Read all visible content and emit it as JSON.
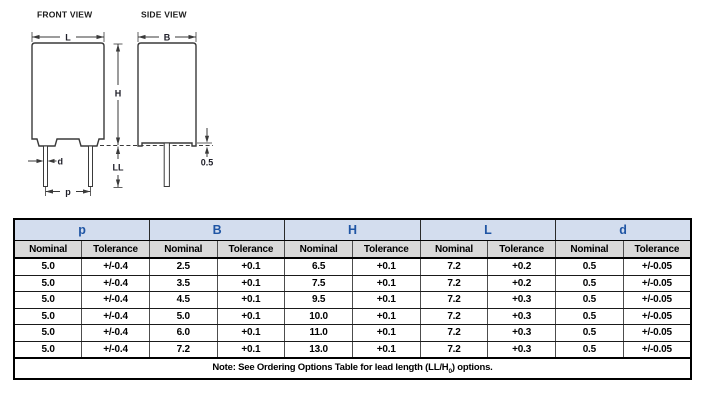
{
  "colors": {
    "header_blue": "#1f55a4",
    "group_header_bg": "#d3ddee",
    "subheader_bg": "#d9d9d9",
    "drawing_line": "#3a3a3a"
  },
  "diagram": {
    "front_view_title": "FRONT VIEW",
    "side_view_title": "SIDE VIEW",
    "labels": {
      "L": "L",
      "B": "B",
      "H": "H",
      "LL": "LL",
      "d": "d",
      "p": "p",
      "standoff": "0.5"
    }
  },
  "table": {
    "groups": [
      "p",
      "B",
      "H",
      "L",
      "d"
    ],
    "subheader_nominal": "Nominal",
    "subheader_tolerance": "Tolerance",
    "rows": [
      [
        "5.0",
        "+/-0.4",
        "2.5",
        "+0.1",
        "6.5",
        "+0.1",
        "7.2",
        "+0.2",
        "0.5",
        "+/-0.05"
      ],
      [
        "5.0",
        "+/-0.4",
        "3.5",
        "+0.1",
        "7.5",
        "+0.1",
        "7.2",
        "+0.2",
        "0.5",
        "+/-0.05"
      ],
      [
        "5.0",
        "+/-0.4",
        "4.5",
        "+0.1",
        "9.5",
        "+0.1",
        "7.2",
        "+0.3",
        "0.5",
        "+/-0.05"
      ],
      [
        "5.0",
        "+/-0.4",
        "5.0",
        "+0.1",
        "10.0",
        "+0.1",
        "7.2",
        "+0.3",
        "0.5",
        "+/-0.05"
      ],
      [
        "5.0",
        "+/-0.4",
        "6.0",
        "+0.1",
        "11.0",
        "+0.1",
        "7.2",
        "+0.3",
        "0.5",
        "+/-0.05"
      ],
      [
        "5.0",
        "+/-0.4",
        "7.2",
        "+0.1",
        "13.0",
        "+0.1",
        "7.2",
        "+0.3",
        "0.5",
        "+/-0.05"
      ]
    ],
    "note": {
      "before": "Note: See Ordering Options Table for lead length (LL/H",
      "subscript": "0",
      "after": ") options."
    }
  }
}
